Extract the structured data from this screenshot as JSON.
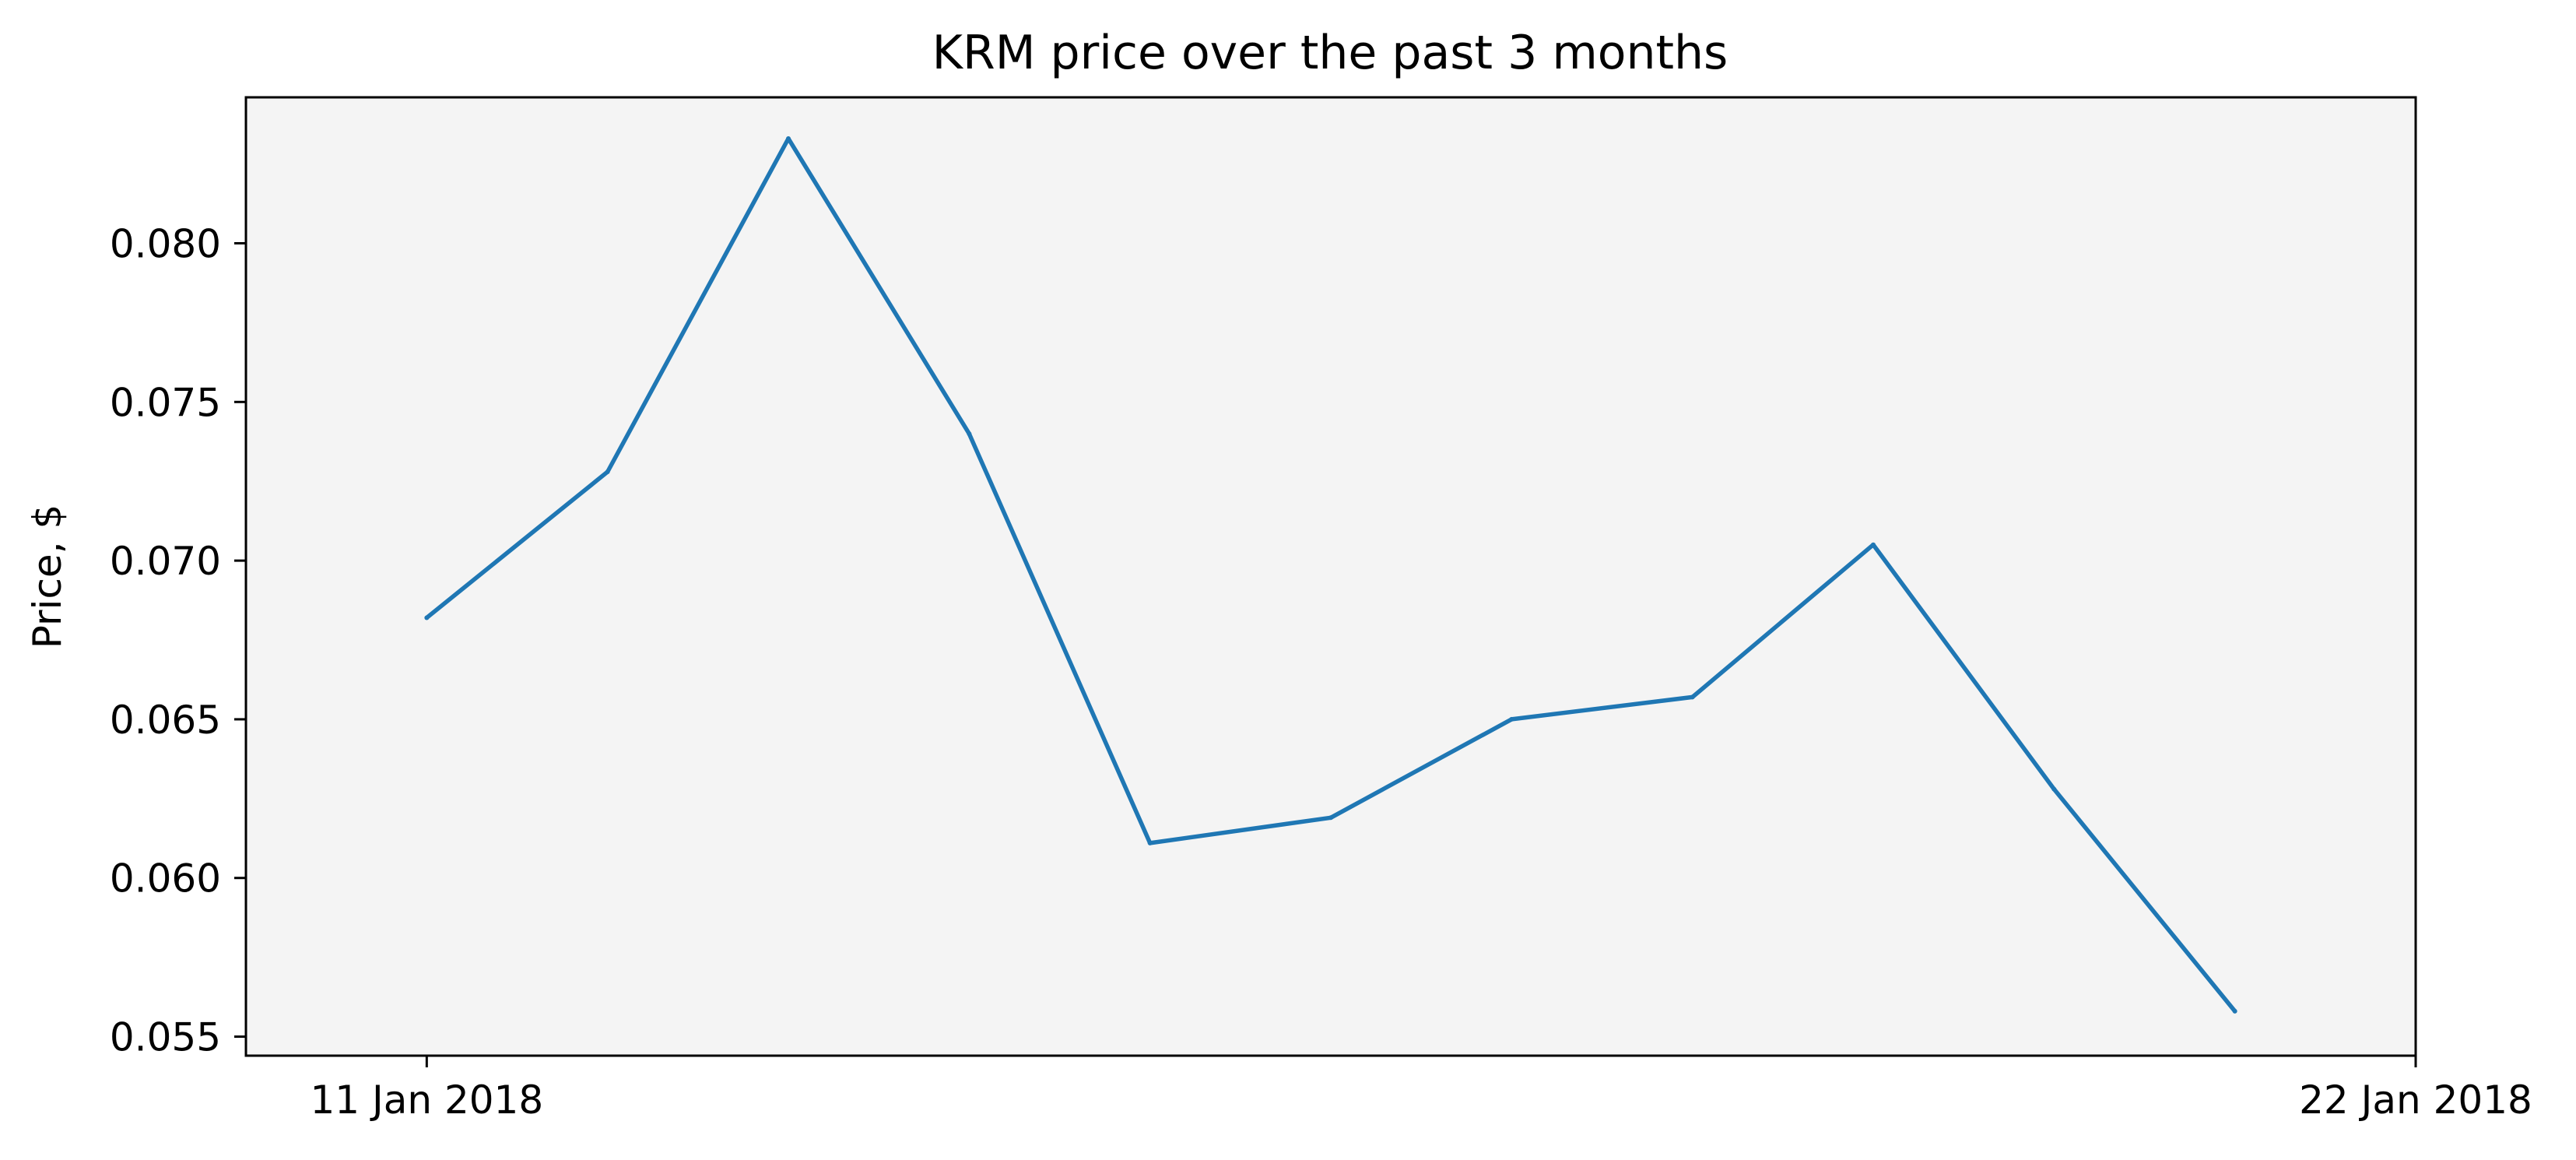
{
  "chart_data": {
    "type": "line",
    "title": "KRM price over the past 3 months",
    "xlabel": "",
    "ylabel": "Price, $",
    "x": [
      "2018-01-11",
      "2018-01-12",
      "2018-01-13",
      "2018-01-14",
      "2018-01-15",
      "2018-01-16",
      "2018-01-17",
      "2018-01-18",
      "2018-01-19",
      "2018-01-20",
      "2018-01-21"
    ],
    "x_ticks": [
      {
        "date": "2018-01-11",
        "label": "11 Jan 2018"
      },
      {
        "date": "2018-01-22",
        "label": "22 Jan 2018"
      }
    ],
    "xlim": [
      "2018-01-10",
      "2018-01-22"
    ],
    "ylim": [
      0.0544,
      0.0846
    ],
    "y_ticks": [
      0.055,
      0.06,
      0.065,
      0.07,
      0.075,
      0.08
    ],
    "y_tick_labels": [
      "0.055",
      "0.060",
      "0.065",
      "0.070",
      "0.075",
      "0.080"
    ],
    "series": [
      {
        "values": [
          0.0682,
          0.0728,
          0.0833,
          0.074,
          0.0611,
          0.0619,
          0.065,
          0.0657,
          0.0705,
          0.0628,
          0.0558
        ],
        "color": "#1f77b4"
      }
    ],
    "grid": false,
    "plot_background": "#f4f4f4",
    "legend": "none"
  }
}
